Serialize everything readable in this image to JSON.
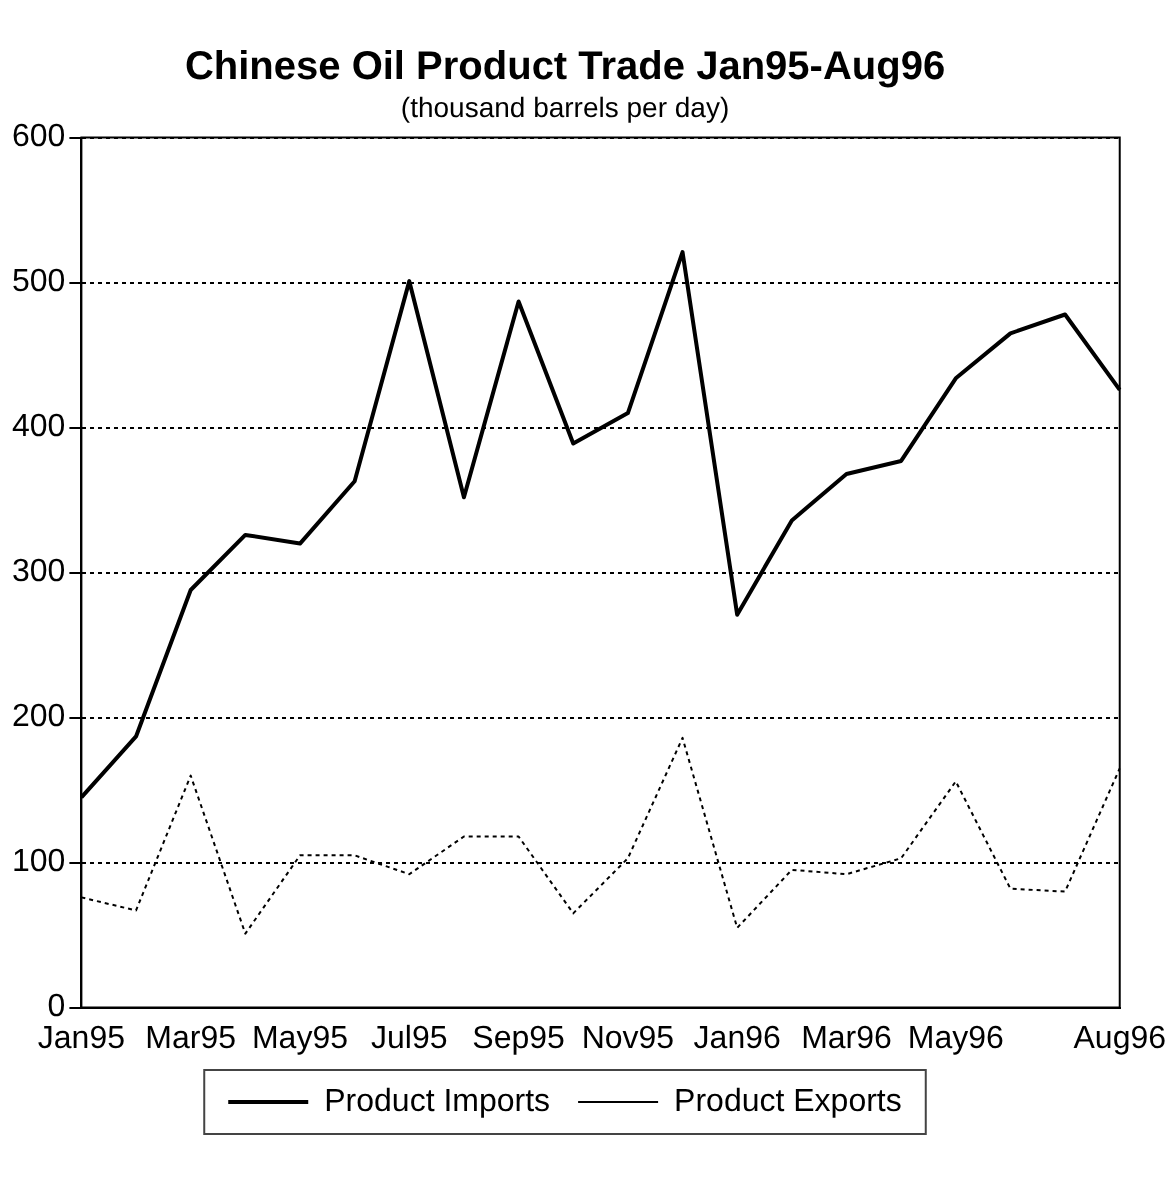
{
  "chart_data": {
    "type": "line",
    "title": "Chinese Oil Product Trade Jan95-Aug96",
    "subtitle": "(thousand barrels per day)",
    "categories": [
      "Jan95",
      null,
      "Mar95",
      null,
      "May95",
      null,
      "Jul95",
      null,
      "Sep95",
      null,
      "Nov95",
      null,
      "Jan96",
      null,
      "Mar96",
      null,
      "May96",
      null,
      null,
      "Aug96"
    ],
    "series": [
      {
        "name": "Product Imports",
        "color": "#000000",
        "line_style": "solid",
        "values": [
          145,
          187,
          288,
          326,
          320,
          363,
          501,
          352,
          487,
          389,
          410,
          521,
          271,
          336,
          368,
          377,
          434,
          465,
          478,
          426
        ]
      },
      {
        "name": "Product Exports",
        "color": "#000000",
        "line_style": "dotted",
        "values": [
          76,
          67,
          160,
          51,
          105,
          105,
          92,
          118,
          118,
          65,
          103,
          186,
          55,
          95,
          92,
          103,
          156,
          82,
          80,
          165
        ]
      }
    ],
    "ylim": [
      0,
      600
    ],
    "yticks": [
      0,
      100,
      200,
      300,
      400,
      500,
      600
    ],
    "grid": "y",
    "legend": "bottom",
    "marker": "none"
  }
}
